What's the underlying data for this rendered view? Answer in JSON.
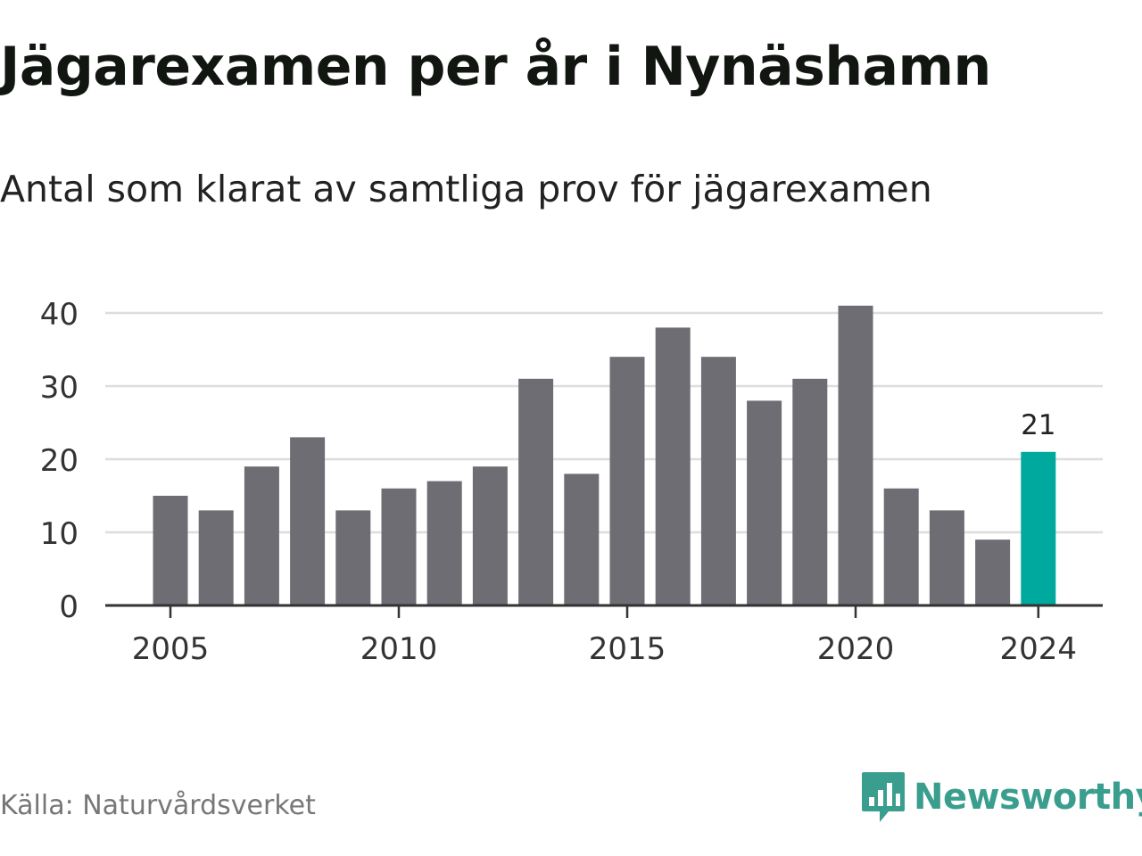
{
  "chart_data": {
    "type": "bar",
    "title": "Jägarexamen per år i Nynäshamn",
    "subtitle": "Antal som klarat av samtliga prov för jägarexamen",
    "categories": [
      2005,
      2006,
      2007,
      2008,
      2009,
      2010,
      2011,
      2012,
      2013,
      2014,
      2015,
      2016,
      2017,
      2018,
      2019,
      2020,
      2021,
      2022,
      2023,
      2024
    ],
    "values": [
      15,
      13,
      19,
      23,
      13,
      16,
      17,
      19,
      31,
      18,
      34,
      38,
      34,
      28,
      31,
      41,
      16,
      13,
      9,
      21
    ],
    "highlight": {
      "category": 2024,
      "label": "21",
      "color": "#00a99d"
    },
    "bar_color": "#6e6d73",
    "ylim": [
      0,
      41
    ],
    "yticks": [
      0,
      10,
      20,
      30,
      40
    ],
    "xticks": [
      2005,
      2010,
      2015,
      2020,
      2024
    ],
    "grid": true,
    "xlabel": "",
    "ylabel": ""
  },
  "source": "Källa: Naturvårdsverket",
  "brand": {
    "name": "Newsworthy",
    "color": "#3a9e8e"
  }
}
